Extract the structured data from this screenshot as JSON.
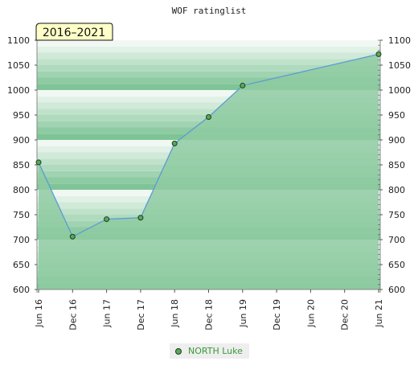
{
  "chart_data": {
    "type": "area",
    "title": "WOF ratinglist",
    "period_label": "2016–2021",
    "x_ticks": [
      "Jun 16",
      "Dec 16",
      "Jun 17",
      "Dec 17",
      "Jun 18",
      "Dec 18",
      "Jun 19",
      "Dec 19",
      "Jun 20",
      "Dec 20",
      "Jun 21"
    ],
    "ylim": [
      600,
      1100
    ],
    "y_ticks": [
      600,
      650,
      700,
      750,
      800,
      850,
      900,
      950,
      1000,
      1050,
      1100
    ],
    "series": [
      {
        "name": "NORTH Luke",
        "points": [
          {
            "x": 0,
            "y": 855
          },
          {
            "x": 1,
            "y": 706
          },
          {
            "x": 2,
            "y": 741
          },
          {
            "x": 3,
            "y": 744
          },
          {
            "x": 4,
            "y": 893
          },
          {
            "x": 5,
            "y": 946
          },
          {
            "x": 6,
            "y": 1009
          },
          {
            "x": 10,
            "y": 1072
          }
        ]
      }
    ],
    "colors": {
      "line": "#5b9bd5",
      "marker_fill": "#58a858",
      "band_dark": "#7ec496",
      "band_light": "#f1f8f3"
    },
    "legend_position": "bottom-center",
    "grid": false
  }
}
